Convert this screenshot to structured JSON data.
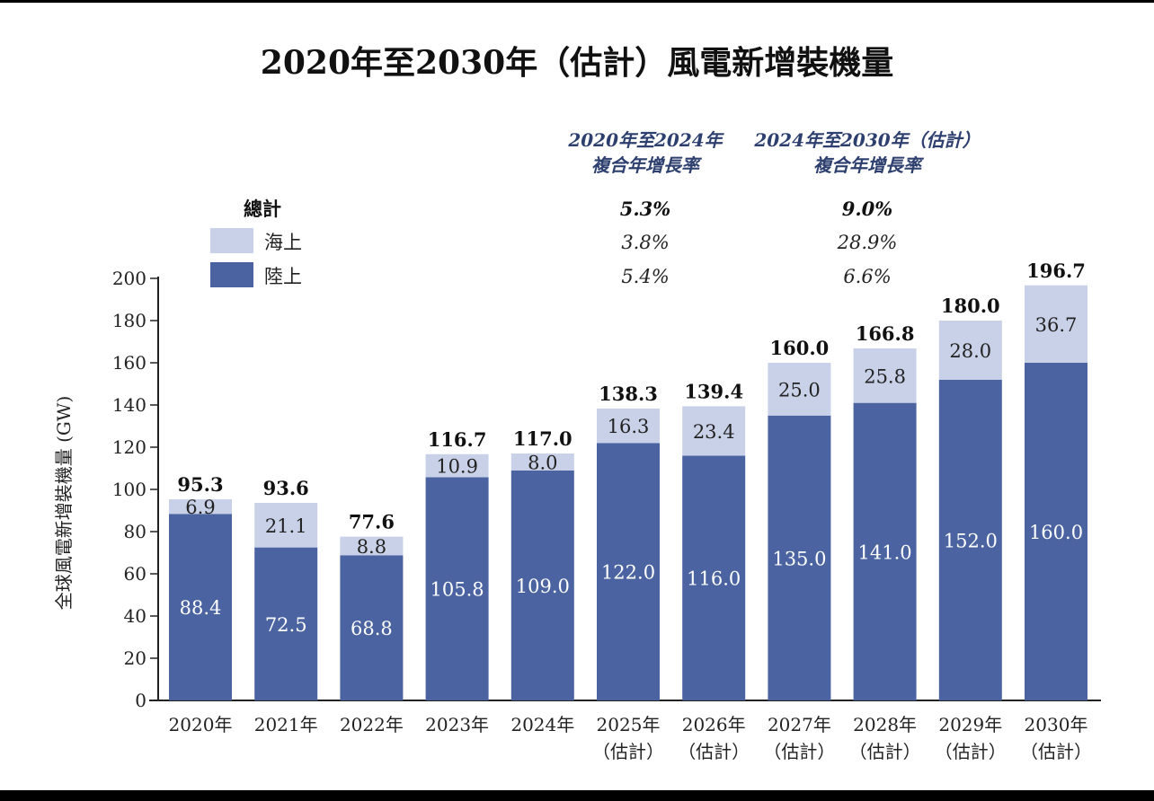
{
  "chart_data": {
    "type": "bar",
    "stacked": true,
    "title": "2020年至2030年（估計）風電新增裝機量",
    "ylabel": "全球風電新增裝機量 (GW)",
    "ylim": [
      0,
      200
    ],
    "yticks": [
      0,
      20,
      40,
      60,
      80,
      100,
      120,
      140,
      160,
      180,
      200
    ],
    "grid": false,
    "categories": [
      [
        "2020年"
      ],
      [
        "2021年"
      ],
      [
        "2022年"
      ],
      [
        "2023年"
      ],
      [
        "2024年"
      ],
      [
        "2025年",
        "（估計）"
      ],
      [
        "2026年",
        "（估計）"
      ],
      [
        "2027年",
        "（估計）"
      ],
      [
        "2028年",
        "（估計）"
      ],
      [
        "2029年",
        "（估計）"
      ],
      [
        "2030年",
        "（估計）"
      ]
    ],
    "series": [
      {
        "name": "陸上",
        "color": "#4b64a1",
        "values": [
          88.4,
          72.5,
          68.8,
          105.8,
          109.0,
          122.0,
          116.0,
          135.0,
          141.0,
          152.0,
          160.0
        ]
      },
      {
        "name": "海上",
        "color": "#c8d1e7",
        "values": [
          6.9,
          21.1,
          8.8,
          10.9,
          8.0,
          16.3,
          23.4,
          25.0,
          25.8,
          28.0,
          36.7
        ]
      }
    ],
    "totals": [
      95.3,
      93.6,
      77.6,
      116.7,
      117.0,
      138.3,
      139.4,
      160.0,
      166.8,
      180.0,
      196.7
    ],
    "legend": {
      "placement": "top-left",
      "total_label": "總計"
    },
    "cagr_table": {
      "columns": [
        {
          "header": [
            "2020年至2024年",
            "複合年增長率"
          ],
          "total": "5.3%",
          "offshore": "3.8%",
          "onshore": "5.4%"
        },
        {
          "header": [
            "2024年至2030年（估計）",
            "複合年增長率"
          ],
          "total": "9.0%",
          "offshore": "28.9%",
          "onshore": "6.6%"
        }
      ]
    }
  }
}
